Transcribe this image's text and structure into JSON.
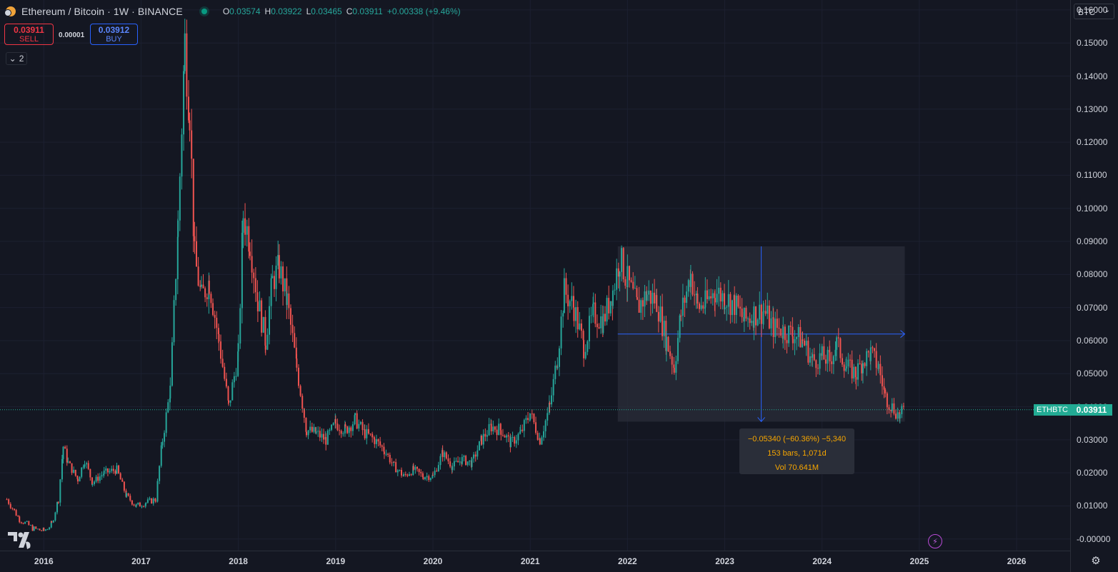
{
  "header": {
    "title": "Ethereum / Bitcoin · 1W · BINANCE",
    "ohlc": [
      {
        "label": "O",
        "value": "0.03574"
      },
      {
        "label": "H",
        "value": "0.03922"
      },
      {
        "label": "L",
        "value": "0.03465"
      },
      {
        "label": "C",
        "value": "0.03911"
      }
    ],
    "change": "+0.00338 (+9.46%)"
  },
  "trade": {
    "sell_price": "0.03911",
    "sell_label": "SELL",
    "spread": "0.00001",
    "buy_price": "0.03912",
    "buy_label": "BUY"
  },
  "indicators_toggle": "2",
  "currency": "BTC",
  "last_price": {
    "symbol": "ETHBTC",
    "value": "0.03911",
    "y": 0.03911
  },
  "measure": {
    "line1": "−0.05340 (−60.36%) −5,340",
    "line2": "153 bars, 1,071d",
    "line3": "Vol 70.641M",
    "x_start": 2021.9,
    "x_end": 2024.85,
    "y_top": 0.0885,
    "y_bottom": 0.0355,
    "y_mid": 0.062
  },
  "colors": {
    "up": "#26a69a",
    "down": "#ef5350",
    "accent": "#2962ff",
    "bg": "#141722"
  },
  "icons": {
    "logo": "tradingview-logo-icon",
    "bolt": "lightning-icon",
    "settings": "gear-icon"
  },
  "chart_data": {
    "type": "candlestick",
    "symbol": "ETHBTC",
    "interval": "1W",
    "xlim": [
      2015.55,
      2026.55
    ],
    "ylim": [
      -0.0035,
      0.163
    ],
    "x_ticks": [
      "2016",
      "2017",
      "2018",
      "2019",
      "2020",
      "2021",
      "2022",
      "2023",
      "2024",
      "2025",
      "2026"
    ],
    "y_ticks": [
      "0.16000",
      "0.15000",
      "0.14000",
      "0.13000",
      "0.12000",
      "0.11000",
      "0.10000",
      "0.09000",
      "0.08000",
      "0.07000",
      "0.06000",
      "0.05000",
      "0.04000",
      "0.03000",
      "0.02000",
      "0.01000",
      "-0.00000"
    ],
    "y_tick_values": [
      0.16,
      0.15,
      0.14,
      0.13,
      0.12,
      0.11,
      0.1,
      0.09,
      0.08,
      0.07,
      0.06,
      0.05,
      0.04,
      0.03,
      0.02,
      0.01,
      0.0
    ],
    "series": [
      {
        "values": [
          [
            2015.62,
            0.012
          ],
          [
            2015.75,
            0.006
          ],
          [
            2015.9,
            0.003
          ],
          [
            2016.0,
            0.0025
          ],
          [
            2016.08,
            0.0045
          ],
          [
            2016.15,
            0.012
          ],
          [
            2016.2,
            0.028
          ],
          [
            2016.25,
            0.023
          ],
          [
            2016.35,
            0.018
          ],
          [
            2016.42,
            0.024
          ],
          [
            2016.5,
            0.017
          ],
          [
            2016.62,
            0.02
          ],
          [
            2016.75,
            0.021
          ],
          [
            2016.85,
            0.013
          ],
          [
            2016.95,
            0.01
          ],
          [
            2017.05,
            0.011
          ],
          [
            2017.15,
            0.012
          ],
          [
            2017.22,
            0.03
          ],
          [
            2017.3,
            0.045
          ],
          [
            2017.38,
            0.095
          ],
          [
            2017.45,
            0.15
          ],
          [
            2017.5,
            0.13
          ],
          [
            2017.55,
            0.085
          ],
          [
            2017.62,
            0.073
          ],
          [
            2017.7,
            0.078
          ],
          [
            2017.8,
            0.06
          ],
          [
            2017.9,
            0.04
          ],
          [
            2018.0,
            0.056
          ],
          [
            2018.05,
            0.098
          ],
          [
            2018.12,
            0.09
          ],
          [
            2018.2,
            0.072
          ],
          [
            2018.28,
            0.06
          ],
          [
            2018.35,
            0.078
          ],
          [
            2018.42,
            0.082
          ],
          [
            2018.5,
            0.072
          ],
          [
            2018.6,
            0.052
          ],
          [
            2018.7,
            0.033
          ],
          [
            2018.8,
            0.032
          ],
          [
            2018.9,
            0.03
          ],
          [
            2019.0,
            0.035
          ],
          [
            2019.1,
            0.033
          ],
          [
            2019.2,
            0.036
          ],
          [
            2019.3,
            0.032
          ],
          [
            2019.4,
            0.03
          ],
          [
            2019.5,
            0.027
          ],
          [
            2019.6,
            0.022
          ],
          [
            2019.7,
            0.019
          ],
          [
            2019.8,
            0.021
          ],
          [
            2019.9,
            0.019
          ],
          [
            2020.0,
            0.019
          ],
          [
            2020.1,
            0.026
          ],
          [
            2020.2,
            0.022
          ],
          [
            2020.3,
            0.024
          ],
          [
            2020.4,
            0.023
          ],
          [
            2020.5,
            0.03
          ],
          [
            2020.6,
            0.034
          ],
          [
            2020.7,
            0.033
          ],
          [
            2020.8,
            0.029
          ],
          [
            2020.9,
            0.032
          ],
          [
            2021.0,
            0.038
          ],
          [
            2021.1,
            0.03
          ],
          [
            2021.2,
            0.04
          ],
          [
            2021.28,
            0.055
          ],
          [
            2021.35,
            0.075
          ],
          [
            2021.45,
            0.07
          ],
          [
            2021.55,
            0.058
          ],
          [
            2021.65,
            0.068
          ],
          [
            2021.75,
            0.066
          ],
          [
            2021.85,
            0.075
          ],
          [
            2021.92,
            0.085
          ],
          [
            2022.0,
            0.078
          ],
          [
            2022.1,
            0.07
          ],
          [
            2022.2,
            0.074
          ],
          [
            2022.3,
            0.072
          ],
          [
            2022.4,
            0.06
          ],
          [
            2022.48,
            0.052
          ],
          [
            2022.55,
            0.068
          ],
          [
            2022.65,
            0.08
          ],
          [
            2022.72,
            0.07
          ],
          [
            2022.8,
            0.071
          ],
          [
            2022.9,
            0.075
          ],
          [
            2023.0,
            0.073
          ],
          [
            2023.1,
            0.071
          ],
          [
            2023.2,
            0.066
          ],
          [
            2023.3,
            0.068
          ],
          [
            2023.4,
            0.069
          ],
          [
            2023.5,
            0.064
          ],
          [
            2023.6,
            0.063
          ],
          [
            2023.7,
            0.062
          ],
          [
            2023.8,
            0.06
          ],
          [
            2023.9,
            0.054
          ],
          [
            2024.0,
            0.055
          ],
          [
            2024.08,
            0.054
          ],
          [
            2024.15,
            0.059
          ],
          [
            2024.25,
            0.052
          ],
          [
            2024.35,
            0.05
          ],
          [
            2024.42,
            0.054
          ],
          [
            2024.5,
            0.056
          ],
          [
            2024.58,
            0.052
          ],
          [
            2024.65,
            0.043
          ],
          [
            2024.72,
            0.04
          ],
          [
            2024.8,
            0.037
          ],
          [
            2024.84,
            0.0391
          ]
        ]
      }
    ]
  }
}
